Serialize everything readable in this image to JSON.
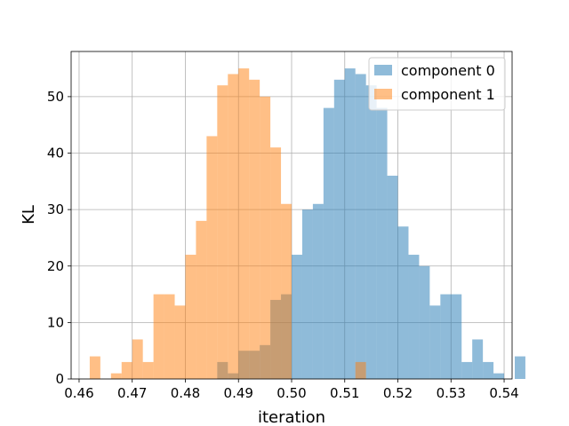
{
  "chart_data": {
    "type": "bar",
    "title": "",
    "xlabel": "iteration",
    "ylabel": "KL",
    "xlim": [
      0.4585,
      0.5415
    ],
    "ylim": [
      0,
      58
    ],
    "grid": true,
    "legend_position": "top-right",
    "x_ticks": [
      {
        "value": 0.46,
        "label": "0.46"
      },
      {
        "value": 0.47,
        "label": "0.47"
      },
      {
        "value": 0.48,
        "label": "0.48"
      },
      {
        "value": 0.49,
        "label": "0.49"
      },
      {
        "value": 0.5,
        "label": "0.50"
      },
      {
        "value": 0.51,
        "label": "0.51"
      },
      {
        "value": 0.52,
        "label": "0.52"
      },
      {
        "value": 0.53,
        "label": "0.53"
      },
      {
        "value": 0.54,
        "label": "0.54"
      }
    ],
    "y_ticks": [
      {
        "value": 0,
        "label": "0"
      },
      {
        "value": 10,
        "label": "10"
      },
      {
        "value": 20,
        "label": "20"
      },
      {
        "value": 30,
        "label": "30"
      },
      {
        "value": 40,
        "label": "40"
      },
      {
        "value": 50,
        "label": "50"
      }
    ],
    "series": [
      {
        "name": "component 0",
        "color": "#1f77b4",
        "alpha": 0.5,
        "bin_start": 0.486,
        "bin_width": 0.002,
        "counts": [
          3,
          1,
          5,
          5,
          6,
          14,
          15,
          22,
          30,
          31,
          48,
          53,
          55,
          54,
          52,
          48,
          36,
          27,
          22,
          20,
          13,
          15,
          15,
          3,
          7,
          3,
          1,
          0,
          4
        ]
      },
      {
        "name": "component 1",
        "color": "#ff7f0e",
        "alpha": 0.5,
        "bin_start": 0.462,
        "bin_width": 0.002,
        "counts": [
          4,
          0,
          1,
          3,
          7,
          3,
          15,
          15,
          13,
          22,
          28,
          43,
          52,
          54,
          55,
          53,
          50,
          41,
          31,
          0,
          0,
          0,
          0,
          0,
          0,
          3
        ]
      }
    ]
  }
}
